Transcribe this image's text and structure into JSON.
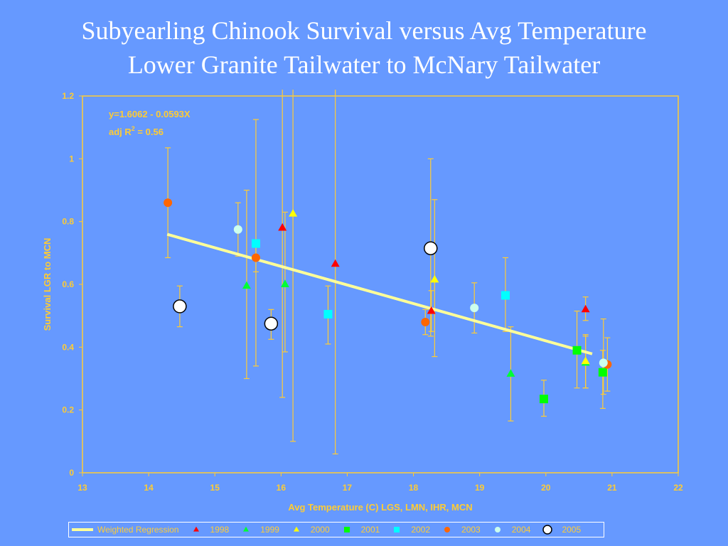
{
  "title": {
    "line1": "Subyearling Chinook Survival versus Avg Temperature",
    "line2": "Lower Granite Tailwater to McNary Tailwater"
  },
  "annotation": {
    "equation": "y=1.6062 - 0.0593X",
    "r2_prefix": "adj R",
    "r2_sup": "2",
    "r2_suffix": " = 0.56"
  },
  "legend": {
    "regression_label": "Weighted Regression",
    "year_labels": [
      "1998",
      "1999",
      "2000",
      "2001",
      "2002",
      "2003",
      "2004",
      "2005"
    ]
  },
  "colors": {
    "background": "#6699ff",
    "axis": "#ffcc33",
    "regression": "#ffff99",
    "1998": "#ff0000",
    "1999": "#00ff33",
    "2000": "#ffff00",
    "2001": "#00ff00",
    "2002": "#00ffff",
    "2003": "#ff6600",
    "2004": "#ccffee",
    "2005": "#ffffff"
  },
  "chart_data": {
    "type": "scatter",
    "xlabel": "Avg Temperature (C) LGS, LMN, IHR, MCN",
    "ylabel": "Survival LGR to MCN",
    "xlim": [
      13,
      22
    ],
    "ylim": [
      0,
      1.2
    ],
    "xticks": [
      "13",
      "14",
      "15",
      "16",
      "17",
      "18",
      "19",
      "20",
      "21",
      "22"
    ],
    "yticks": [
      "0",
      "0.2",
      "0.4",
      "0.6",
      "0.8",
      "1",
      "1.2"
    ],
    "grid": false,
    "legend_position": "bottom",
    "regression": {
      "intercept": 1.6062,
      "slope": -0.0593,
      "x_range": [
        14.28,
        20.7
      ]
    },
    "series": [
      {
        "name": "1998",
        "marker": "triangle",
        "points": [
          {
            "x": 16.02,
            "y": 0.78,
            "lo": 0.24,
            "hi": 1.22
          },
          {
            "x": 16.82,
            "y": 0.665,
            "lo": 0.06,
            "hi": 1.22
          },
          {
            "x": 18.27,
            "y": 0.515,
            "lo": 0.45,
            "hi": 0.58
          },
          {
            "x": 20.6,
            "y": 0.52,
            "lo": 0.485,
            "hi": 0.56
          }
        ]
      },
      {
        "name": "1999",
        "marker": "triangle",
        "points": [
          {
            "x": 15.48,
            "y": 0.595,
            "lo": 0.3,
            "hi": 0.9
          },
          {
            "x": 16.06,
            "y": 0.6,
            "lo": 0.385,
            "hi": 0.83
          },
          {
            "x": 19.47,
            "y": 0.315,
            "lo": 0.165,
            "hi": 0.465
          },
          {
            "x": 20.6,
            "y": 0.35,
            "lo": 0.27,
            "hi": 0.435
          }
        ]
      },
      {
        "name": "2000",
        "marker": "triangle",
        "points": [
          {
            "x": 16.18,
            "y": 0.825,
            "lo": 0.1,
            "hi": 1.22
          },
          {
            "x": 18.32,
            "y": 0.615,
            "lo": 0.37,
            "hi": 0.87
          },
          {
            "x": 20.6,
            "y": 0.355,
            "lo": 0.27,
            "hi": 0.44
          }
        ]
      },
      {
        "name": "2001",
        "marker": "square",
        "points": [
          {
            "x": 19.97,
            "y": 0.235,
            "lo": 0.18,
            "hi": 0.295
          },
          {
            "x": 20.47,
            "y": 0.39,
            "lo": 0.27,
            "hi": 0.515
          },
          {
            "x": 20.86,
            "y": 0.32,
            "lo": 0.205,
            "hi": 0.39
          }
        ]
      },
      {
        "name": "2002",
        "marker": "square",
        "points": [
          {
            "x": 15.62,
            "y": 0.73,
            "lo": 0.34,
            "hi": 1.125
          },
          {
            "x": 16.71,
            "y": 0.505,
            "lo": 0.41,
            "hi": 0.595
          },
          {
            "x": 19.39,
            "y": 0.565,
            "lo": 0.45,
            "hi": 0.685
          }
        ]
      },
      {
        "name": "2003",
        "marker": "circle",
        "points": [
          {
            "x": 14.29,
            "y": 0.86,
            "lo": 0.685,
            "hi": 1.035
          },
          {
            "x": 15.62,
            "y": 0.685,
            "lo": 0.64,
            "hi": 0.73
          },
          {
            "x": 18.18,
            "y": 0.48,
            "lo": 0.44,
            "hi": 0.52
          },
          {
            "x": 20.93,
            "y": 0.345,
            "lo": 0.26,
            "hi": 0.43
          }
        ]
      },
      {
        "name": "2004",
        "marker": "circle",
        "points": [
          {
            "x": 15.35,
            "y": 0.775,
            "lo": 0.69,
            "hi": 0.86
          },
          {
            "x": 18.92,
            "y": 0.525,
            "lo": 0.445,
            "hi": 0.605
          },
          {
            "x": 20.87,
            "y": 0.35,
            "lo": 0.25,
            "hi": 0.49
          }
        ]
      },
      {
        "name": "2005",
        "marker": "open-circle",
        "points": [
          {
            "x": 14.47,
            "y": 0.53,
            "lo": 0.465,
            "hi": 0.595
          },
          {
            "x": 15.85,
            "y": 0.475,
            "lo": 0.425,
            "hi": 0.52
          },
          {
            "x": 18.26,
            "y": 0.715,
            "lo": 0.435,
            "hi": 1.0
          }
        ]
      }
    ]
  }
}
